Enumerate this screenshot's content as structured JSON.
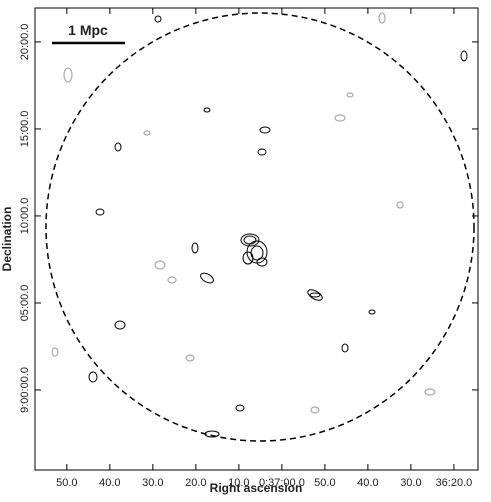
{
  "chart_data": {
    "type": "contour",
    "scale_bar": "1 Mpc",
    "x_label": "Right ascension",
    "y_label": "Declination",
    "xlim": [
      2277.4,
      2174.4
    ],
    "xticks": [
      {
        "value": 2270,
        "label": "50.0"
      },
      {
        "value": 2260,
        "label": "40.0"
      },
      {
        "value": 2250,
        "label": "30.0"
      },
      {
        "value": 2240,
        "label": "20.0"
      },
      {
        "value": 2230,
        "label": "10.0"
      },
      {
        "value": 2220,
        "label": "0:37:00.0"
      },
      {
        "value": 2210,
        "label": "50.0"
      },
      {
        "value": 2200,
        "label": "40.0"
      },
      {
        "value": 2190,
        "label": "30.0"
      },
      {
        "value": 2180,
        "label": "36:20.0"
      }
    ],
    "ylim": [
      -4.6,
      21.95
    ],
    "yticks": [
      {
        "value": 20,
        "label": "20:00.0"
      },
      {
        "value": 15,
        "label": "15:00.0"
      },
      {
        "value": 10,
        "label": "10:00.0"
      },
      {
        "value": 5,
        "label": "05:00.0"
      },
      {
        "value": 0,
        "label": "9:00:00.0"
      }
    ]
  }
}
